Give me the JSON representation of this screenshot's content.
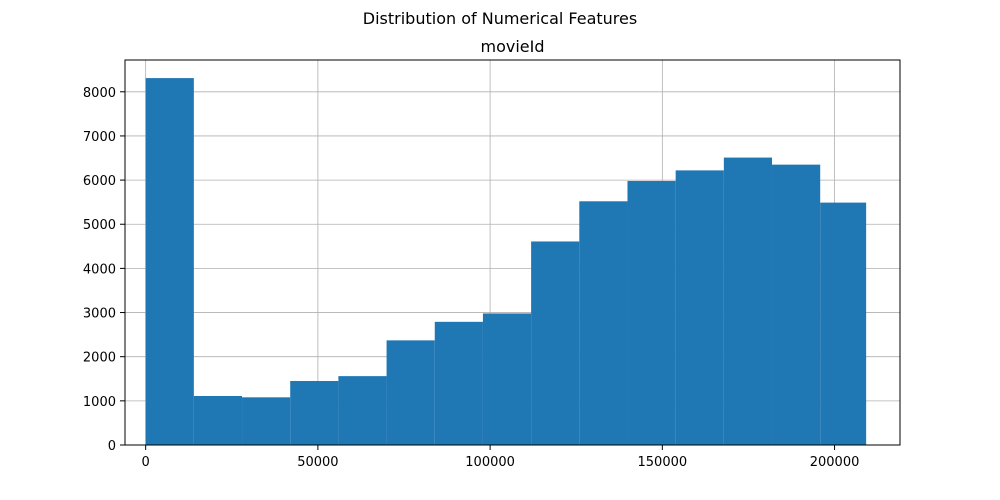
{
  "figure": {
    "suptitle": "Distribution of Numerical Features"
  },
  "chart_data": {
    "type": "bar",
    "subtype": "histogram",
    "title": "movieId",
    "xlabel": "",
    "ylabel": "",
    "bin_edges": [
      1,
      13989,
      27977,
      41965,
      55953,
      69941,
      83929,
      97917,
      111905,
      125893,
      139881,
      153869,
      167857,
      181845,
      195833,
      209171
    ],
    "values": [
      8310,
      1110,
      1080,
      1450,
      1560,
      2370,
      2790,
      2980,
      4610,
      5520,
      5980,
      6220,
      6510,
      6350,
      5490
    ],
    "xlim": [
      -6000,
      219000
    ],
    "ylim": [
      0,
      8720
    ],
    "xticks": [
      0,
      50000,
      100000,
      150000,
      200000
    ],
    "yticks": [
      0,
      1000,
      2000,
      3000,
      4000,
      5000,
      6000,
      7000,
      8000
    ],
    "grid": true,
    "legend": "none",
    "color": "#1f77b4"
  }
}
